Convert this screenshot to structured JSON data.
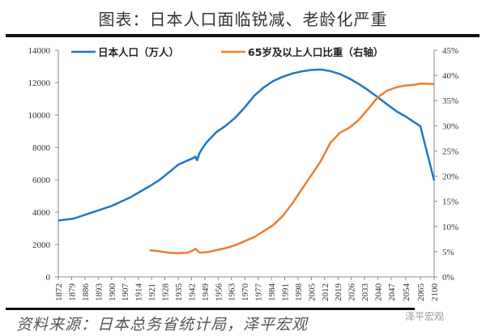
{
  "title": "图表：日本人口面临锐减、老龄化严重",
  "source": "资料来源：日本总务省统计局，泽平宏观",
  "watermark": "泽平宏观",
  "chart_data": {
    "type": "line",
    "title": "图表：日本人口面临锐减、老龄化严重",
    "x_tick_labels": [
      "1872",
      "1879",
      "1886",
      "1893",
      "1900",
      "1907",
      "1914",
      "1921",
      "1928",
      "1935",
      "1942",
      "1949",
      "1956",
      "1963",
      "1970",
      "1977",
      "1984",
      "1991",
      "1998",
      "2005",
      "2012",
      "2019",
      "2026",
      "2033",
      "2040",
      "2047",
      "2054",
      "2065",
      "2100"
    ],
    "y_left": {
      "min": 0,
      "max": 14000,
      "ticks": [
        0,
        2000,
        4000,
        6000,
        8000,
        10000,
        12000,
        14000
      ]
    },
    "y_right": {
      "min": 0,
      "max": 45,
      "ticks": [
        "0%",
        "5%",
        "10%",
        "15%",
        "20%",
        "25%",
        "30%",
        "35%",
        "40%",
        "45%"
      ]
    },
    "grid": false,
    "legend_placement": "top",
    "series": [
      {
        "name": "日本人口（万人）",
        "axis": "left",
        "color": "#1f77c4",
        "x": [
          1872,
          1880,
          1890,
          1900,
          1910,
          1920,
          1925,
          1930,
          1935,
          1940,
          1943,
          1944,
          1945,
          1946,
          1947,
          1950,
          1955,
          1960,
          1965,
          1970,
          1975,
          1980,
          1985,
          1990,
          1995,
          2000,
          2005,
          2010,
          2015,
          2020,
          2025,
          2030,
          2035,
          2040,
          2045,
          2050,
          2054,
          2065,
          2100
        ],
        "y": [
          3480,
          3600,
          3990,
          4380,
          4920,
          5600,
          5970,
          6440,
          6930,
          7190,
          7340,
          7430,
          7200,
          7580,
          7810,
          8320,
          8930,
          9340,
          9830,
          10470,
          11190,
          11700,
          12100,
          12360,
          12560,
          12690,
          12780,
          12806,
          12710,
          12530,
          12250,
          11910,
          11520,
          11090,
          10640,
          10190,
          9900,
          9300,
          5950
        ]
      },
      {
        "name": "65岁及以上人口比重（右轴）",
        "axis": "right",
        "color": "#ed7d31",
        "x": [
          1920,
          1925,
          1930,
          1935,
          1940,
          1943,
          1944,
          1946,
          1947,
          1950,
          1955,
          1960,
          1965,
          1970,
          1975,
          1980,
          1985,
          1990,
          1995,
          2000,
          2005,
          2010,
          2015,
          2020,
          2025,
          2030,
          2035,
          2040,
          2045,
          2050,
          2054,
          2060,
          2065,
          2100
        ],
        "y": [
          5.3,
          5.1,
          4.8,
          4.7,
          4.8,
          5.3,
          5.6,
          4.9,
          4.8,
          4.9,
          5.3,
          5.7,
          6.3,
          7.1,
          7.9,
          9.1,
          10.3,
          12.1,
          14.6,
          17.4,
          20.2,
          23.0,
          26.6,
          28.6,
          29.6,
          31.2,
          33.4,
          35.7,
          37.0,
          37.7,
          38.0,
          38.1,
          38.4,
          38.3
        ]
      }
    ]
  }
}
